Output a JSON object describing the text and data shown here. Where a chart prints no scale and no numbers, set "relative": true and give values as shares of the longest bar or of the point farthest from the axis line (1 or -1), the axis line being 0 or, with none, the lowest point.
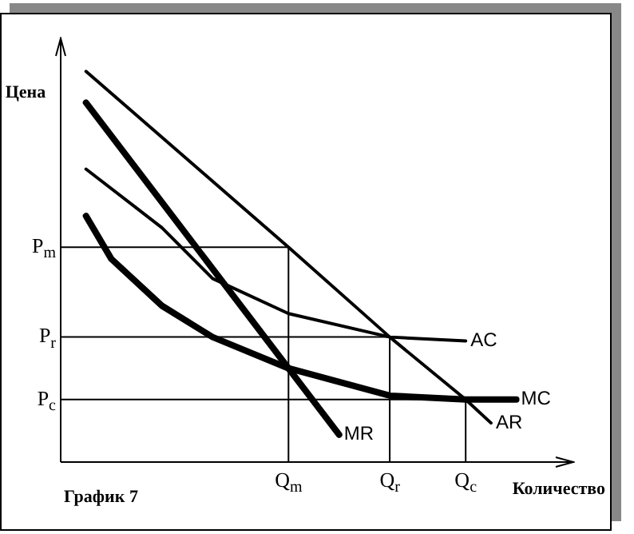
{
  "chart_data": {
    "type": "line",
    "relative": true,
    "xlabel": "Количество",
    "ylabel": "Цена",
    "annotations": [
      "График 7"
    ],
    "categories": [
      null,
      null,
      null,
      null,
      null,
      null,
      null,
      null,
      null,
      "Q$_{m}$",
      null,
      null,
      null,
      "Q$_{r}$",
      null,
      null,
      "Q$_{c}$",
      null,
      null,
      null,
      null
    ],
    "ref_lines": [
      {
        "axis": "y",
        "value": 0.55,
        "label": "P$_{m}$",
        "color": "#000000"
      },
      {
        "axis": "y",
        "value": 0.32,
        "label": "P$_{r}$",
        "color": "#000000"
      },
      {
        "axis": "y",
        "value": 0.16,
        "label": "P$_{c}$",
        "color": "#000000"
      }
    ],
    "grid": false,
    "legend": false,
    "marker": "none",
    "line_style": "solid",
    "series": [
      {
        "name": "AR",
        "color": "#000000",
        "values": [
          null,
          1.0,
          null,
          null,
          null,
          null,
          null,
          null,
          null,
          0.55,
          null,
          null,
          null,
          0.32,
          null,
          null,
          0.16,
          0.1,
          null,
          null,
          null
        ]
      },
      {
        "name": "MR",
        "color": "#000000",
        "values": [
          null,
          0.92,
          null,
          null,
          null,
          null,
          null,
          null,
          null,
          0.24,
          null,
          0.07,
          null,
          null,
          null,
          null,
          null,
          null,
          null,
          null,
          null
        ]
      },
      {
        "name": "AC",
        "color": "#000000",
        "values": [
          null,
          0.75,
          null,
          null,
          0.6,
          null,
          0.47,
          null,
          null,
          0.38,
          null,
          null,
          null,
          0.32,
          null,
          null,
          0.31,
          null,
          null,
          null,
          null
        ]
      },
      {
        "name": "MC",
        "color": "#000000",
        "values": [
          null,
          0.63,
          0.52,
          null,
          0.4,
          null,
          0.32,
          null,
          null,
          0.24,
          null,
          null,
          null,
          0.17,
          null,
          null,
          0.16,
          null,
          0.16,
          null,
          null
        ]
      }
    ]
  }
}
